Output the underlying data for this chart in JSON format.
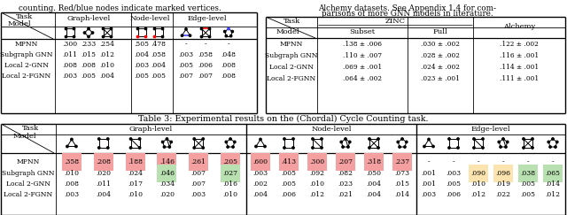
{
  "models": [
    "MPNN",
    "Subgraph GNN",
    "Local 2-GNN",
    "Local 2-FGNN"
  ],
  "table1": {
    "graph_level": [
      [
        ".300",
        ".233",
        ".254"
      ],
      [
        ".011",
        ".015",
        ".012"
      ],
      [
        ".008",
        ".008",
        ".010"
      ],
      [
        ".003",
        ".005",
        ".004"
      ]
    ],
    "node_level": [
      [
        ".505",
        ".478"
      ],
      [
        ".004",
        ".058"
      ],
      [
        ".003",
        ".004"
      ],
      [
        ".005",
        ".005"
      ]
    ],
    "edge_level": [
      [
        "-",
        "-",
        "-"
      ],
      [
        ".003",
        ".058",
        ".048"
      ],
      [
        ".005",
        ".006",
        ".008"
      ],
      [
        ".007",
        ".007",
        ".008"
      ]
    ]
  },
  "table2": {
    "zinc_subset": [
      ".138 ± .006",
      ".110 ± .007",
      ".069 ± .001",
      ".064 ± .002"
    ],
    "zinc_full": [
      ".030 ± .002",
      ".028 ± .002",
      ".024 ± .002",
      ".023 ± .001"
    ],
    "alchemy": [
      ".122 ± .002",
      ".116 ± .001",
      ".114 ± .001",
      ".111 ± .001"
    ]
  },
  "table3": {
    "graph_level": [
      [
        ".358",
        ".208",
        ".188",
        ".146",
        ".261",
        ".205"
      ],
      [
        ".010",
        ".020",
        ".024",
        ".046",
        ".007",
        ".027"
      ],
      [
        ".008",
        ".011",
        ".017",
        ".034",
        ".007",
        ".016"
      ],
      [
        ".003",
        ".004",
        ".010",
        ".020",
        ".003",
        ".010"
      ]
    ],
    "node_level": [
      [
        ".600",
        ".413",
        ".300",
        ".207",
        ".318",
        ".237"
      ],
      [
        ".003",
        ".005",
        ".092",
        ".082",
        ".050",
        ".073"
      ],
      [
        ".002",
        ".005",
        ".010",
        ".023",
        ".004",
        ".015"
      ],
      [
        ".004",
        ".006",
        ".012",
        ".021",
        ".004",
        ".014"
      ]
    ],
    "edge_level": [
      [
        "-",
        "-",
        "-",
        "-",
        "-",
        "-"
      ],
      [
        ".001",
        ".003",
        ".090",
        ".096",
        ".038",
        ".065"
      ],
      [
        ".001",
        ".005",
        ".010",
        ".019",
        ".005",
        ".014"
      ],
      [
        ".003",
        ".006",
        ".012",
        ".022",
        ".005",
        ".012"
      ]
    ]
  }
}
